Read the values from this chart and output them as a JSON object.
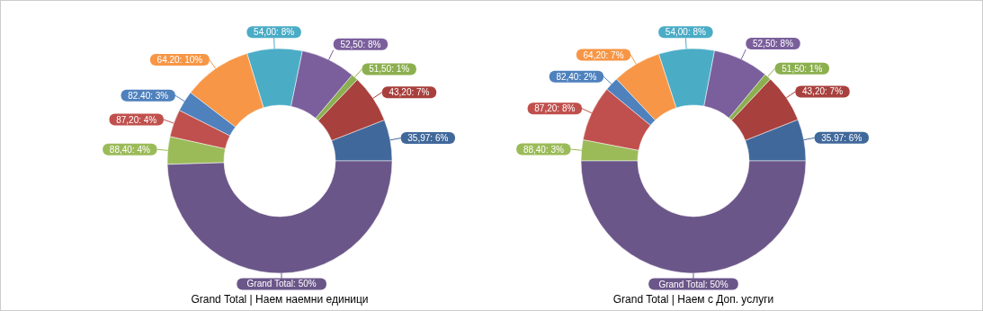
{
  "chart_data": [
    {
      "type": "donut",
      "title": "Grand Total | Наем наемни единици",
      "categories": [
        "35,97",
        "43,20",
        "51,50",
        "52,50",
        "54,00",
        "64.20",
        "82.40",
        "87,20",
        "88,40",
        "Grand Total"
      ],
      "values": [
        6,
        7,
        1,
        8,
        8,
        10,
        3,
        4,
        4,
        50
      ],
      "value_labels": [
        "6%",
        "7%",
        "1%",
        "8%",
        "8%",
        "10%",
        "3%",
        "4%",
        "4%",
        "50%"
      ],
      "colors": [
        "#41689b",
        "#a8403d",
        "#8cb04f",
        "#7a5f9c",
        "#4bacc6",
        "#f79646",
        "#4f81bd",
        "#c0504d",
        "#9bbb59",
        "#6b5689"
      ]
    },
    {
      "type": "donut",
      "title": "Grand Total | Наем с Доп. услуги",
      "categories": [
        "35.97",
        "43,20",
        "51,50",
        "52,50",
        "54,00",
        "64,20",
        "82,40",
        "87,20",
        "88,40",
        "Grand Total"
      ],
      "values": [
        6,
        7,
        1,
        8,
        8,
        7,
        2,
        8,
        3,
        50
      ],
      "value_labels": [
        "6%",
        "7%",
        "1%",
        "8%",
        "8%",
        "7%",
        "2%",
        "8%",
        "3%",
        "50%"
      ],
      "colors": [
        "#41689b",
        "#a8403d",
        "#8cb04f",
        "#7a5f9c",
        "#4bacc6",
        "#f79646",
        "#4f81bd",
        "#c0504d",
        "#9bbb59",
        "#6b5689"
      ]
    }
  ]
}
